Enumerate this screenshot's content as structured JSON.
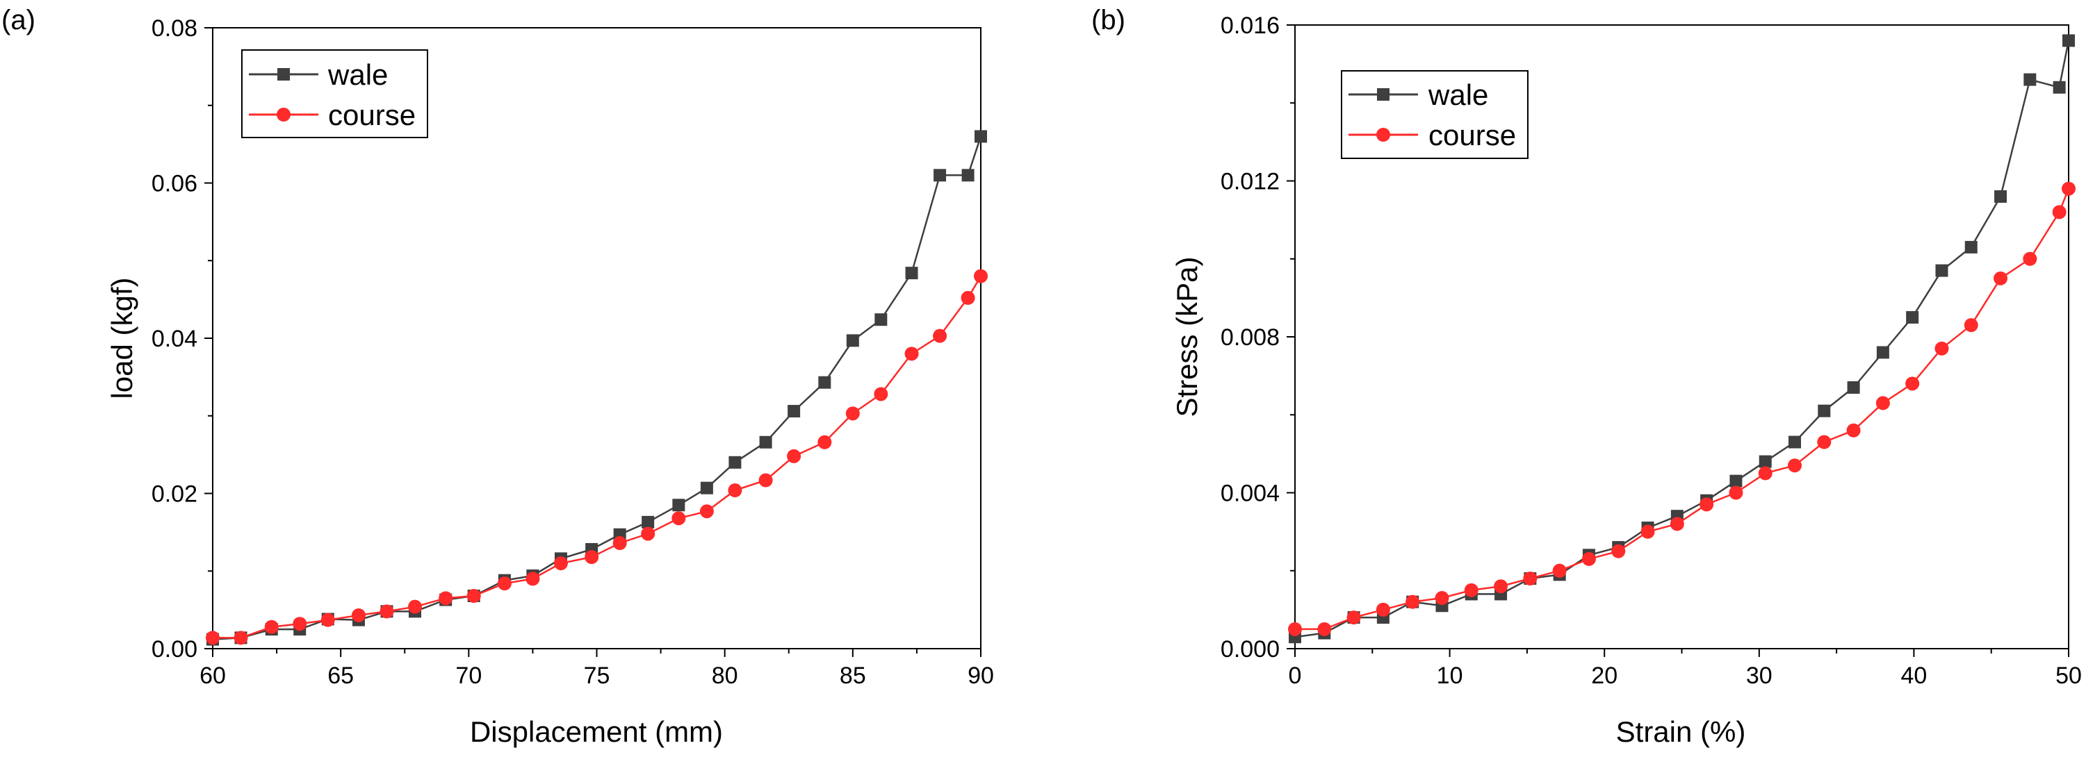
{
  "chart_data": [
    {
      "type": "line",
      "panel_label": "(a)",
      "title": "",
      "xlabel": "Displacement (mm)",
      "ylabel": "load (kgf)",
      "xlim": [
        60,
        90
      ],
      "ylim": [
        0,
        0.08
      ],
      "xticks": [
        "60",
        "65",
        "70",
        "75",
        "80",
        "85",
        "90"
      ],
      "yticks": [
        "0.00",
        "0.02",
        "0.04",
        "0.06",
        "0.08"
      ],
      "legend_position": "top-left",
      "series": [
        {
          "name": "wale",
          "color": "#3f3f3f",
          "marker": "square",
          "x": [
            60,
            61.1,
            62.3,
            63.4,
            64.5,
            65.7,
            66.8,
            67.9,
            69.1,
            70.2,
            71.4,
            72.5,
            73.6,
            74.8,
            75.9,
            77.0,
            78.2,
            79.3,
            80.4,
            81.6,
            82.7,
            83.9,
            85.0,
            86.1,
            87.3,
            88.4,
            89.5,
            90.0
          ],
          "y": [
            0.0012,
            0.0014,
            0.0025,
            0.0025,
            0.0038,
            0.0037,
            0.0048,
            0.0048,
            0.0063,
            0.0068,
            0.0088,
            0.0094,
            0.0116,
            0.0128,
            0.0147,
            0.0163,
            0.0185,
            0.0207,
            0.024,
            0.0266,
            0.0306,
            0.0343,
            0.0397,
            0.0424,
            0.0484,
            0.061,
            0.061,
            0.066
          ]
        },
        {
          "name": "course",
          "color": "#ff2a2a",
          "marker": "circle",
          "x": [
            60,
            61.1,
            62.3,
            63.4,
            64.5,
            65.7,
            66.8,
            67.9,
            69.1,
            70.2,
            71.4,
            72.5,
            73.6,
            74.8,
            75.9,
            77.0,
            78.2,
            79.3,
            80.4,
            81.6,
            82.7,
            83.9,
            85.0,
            86.1,
            87.3,
            88.4,
            89.5,
            90.0
          ],
          "y": [
            0.0014,
            0.0014,
            0.0028,
            0.0032,
            0.0037,
            0.0043,
            0.0048,
            0.0054,
            0.0065,
            0.0068,
            0.0084,
            0.009,
            0.011,
            0.0118,
            0.0136,
            0.0148,
            0.0168,
            0.0177,
            0.0204,
            0.0217,
            0.0248,
            0.0266,
            0.0303,
            0.0328,
            0.038,
            0.0403,
            0.0452,
            0.048
          ]
        }
      ]
    },
    {
      "type": "line",
      "panel_label": "(b)",
      "title": "",
      "xlabel": "Strain (%)",
      "ylabel": "Stress (kPa)",
      "xlim": [
        0,
        50
      ],
      "ylim": [
        0,
        0.016
      ],
      "xticks": [
        "0",
        "10",
        "20",
        "30",
        "40",
        "50"
      ],
      "yticks": [
        "0.000",
        "0.004",
        "0.008",
        "0.012",
        "0.016"
      ],
      "legend_position": "top-left",
      "series": [
        {
          "name": "wale",
          "color": "#3f3f3f",
          "marker": "square",
          "x": [
            0,
            1.9,
            3.8,
            5.7,
            7.6,
            9.5,
            11.4,
            13.3,
            15.2,
            17.1,
            19.0,
            20.9,
            22.8,
            24.7,
            26.6,
            28.5,
            30.4,
            32.3,
            34.2,
            36.1,
            38.0,
            39.9,
            41.8,
            43.7,
            45.6,
            47.5,
            49.4,
            50.0
          ],
          "y": [
            0.0003,
            0.0004,
            0.0008,
            0.0008,
            0.0012,
            0.0011,
            0.0014,
            0.0014,
            0.0018,
            0.0019,
            0.0024,
            0.0026,
            0.0031,
            0.0034,
            0.0038,
            0.0043,
            0.0048,
            0.0053,
            0.0061,
            0.0067,
            0.0076,
            0.0085,
            0.0097,
            0.0103,
            0.0116,
            0.0146,
            0.0144,
            0.0156
          ]
        },
        {
          "name": "course",
          "color": "#ff2a2a",
          "marker": "circle",
          "x": [
            0,
            1.9,
            3.8,
            5.7,
            7.6,
            9.5,
            11.4,
            13.3,
            15.2,
            17.1,
            19.0,
            20.9,
            22.8,
            24.7,
            26.6,
            28.5,
            30.4,
            32.3,
            34.2,
            36.1,
            38.0,
            39.9,
            41.8,
            43.7,
            45.6,
            47.5,
            49.4,
            50.0
          ],
          "y": [
            0.0005,
            0.0005,
            0.0008,
            0.001,
            0.0012,
            0.0013,
            0.0015,
            0.0016,
            0.0018,
            0.002,
            0.0023,
            0.0025,
            0.003,
            0.0032,
            0.0037,
            0.004,
            0.0045,
            0.0047,
            0.0053,
            0.0056,
            0.0063,
            0.0068,
            0.0077,
            0.0083,
            0.0095,
            0.01,
            0.0112,
            0.0118
          ]
        }
      ]
    }
  ]
}
